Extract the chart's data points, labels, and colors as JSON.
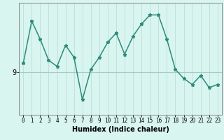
{
  "x": [
    0,
    1,
    2,
    3,
    4,
    5,
    6,
    7,
    8,
    9,
    10,
    11,
    12,
    13,
    14,
    15,
    16,
    17,
    18,
    19,
    20,
    21,
    22,
    23
  ],
  "y": [
    9.15,
    9.85,
    9.55,
    9.2,
    9.1,
    9.45,
    9.25,
    8.55,
    9.05,
    9.25,
    9.5,
    9.65,
    9.3,
    9.6,
    9.8,
    9.95,
    9.95,
    9.55,
    9.05,
    8.9,
    8.8,
    8.95,
    8.75,
    8.8
  ],
  "line_color": "#2e8b7a",
  "marker": "*",
  "marker_color": "#2e8b7a",
  "bg_color": "#d8f5f0",
  "grid_color": "#c0ddd8",
  "hline_color": "#a8c8c4",
  "xlabel": "Humidex (Indice chaleur)",
  "ylabel": "9",
  "ytick_val": 9.0,
  "xlim": [
    -0.5,
    23.5
  ],
  "ylim": [
    8.3,
    10.15
  ],
  "xlabel_fontsize": 7,
  "ylabel_fontsize": 7,
  "tick_fontsize": 5.5,
  "linewidth": 1.1,
  "markersize": 3.5,
  "spine_color": "#888888"
}
